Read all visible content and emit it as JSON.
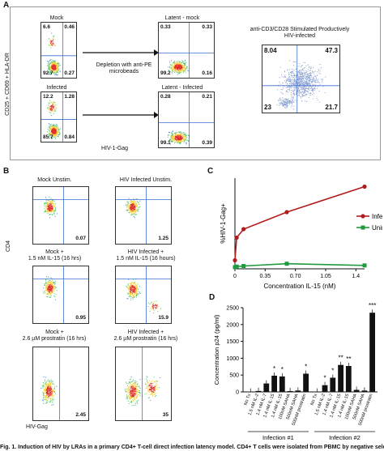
{
  "panelA": {
    "letter": "A",
    "ylabel": "CD25 + CD69 + HLA-DR",
    "xlabel": "HIV-1-Gag",
    "arrow_text": "Depletion with anti-PE microbeads",
    "stim_title": "anti-CD3/CD28 Stimulated Productively HIV-infected",
    "plots": [
      {
        "name": "mock",
        "label": "Mock",
        "q": [
          "6.6",
          "0.46",
          "92.7",
          "0.27"
        ]
      },
      {
        "name": "infected",
        "label": "Infected",
        "q": [
          "12.2",
          "1.28",
          "85.7",
          "0.84"
        ]
      },
      {
        "name": "latent-mock",
        "label": "Latent - mock",
        "q": [
          "0.33",
          "0.33",
          "99.2",
          "0.16"
        ]
      },
      {
        "name": "latent-infected",
        "label": "Latent - Infected",
        "q": [
          "0.28",
          "0.21",
          "99.1",
          "0.39"
        ]
      },
      {
        "name": "stimulated",
        "label": "",
        "q": [
          "8.04",
          "47.3",
          "23",
          "21.7"
        ]
      }
    ]
  },
  "panelB": {
    "letter": "B",
    "ylabel": "CD4",
    "xlabel": "HIV-Gag",
    "plots": [
      {
        "name": "mock-unstim",
        "label": "Mock Unstim.",
        "label2": "",
        "value": "0.07"
      },
      {
        "name": "hiv-unstim",
        "label": "HIV Infected Unstim.",
        "label2": "",
        "value": "1.25"
      },
      {
        "name": "mock-il15",
        "label": "Mock +",
        "label2": "1.5 nM IL-15 (16 hrs)",
        "value": "0.95"
      },
      {
        "name": "hiv-il15",
        "label": "HIV Infected +",
        "label2": "1.5 nM IL-15 (16 hours)",
        "value": "15.9"
      },
      {
        "name": "mock-prostratin",
        "label": "Mock +",
        "label2": "2.6 µM prostratin (16 hrs)",
        "value": "2.45"
      },
      {
        "name": "hiv-prostratin",
        "label": "HIV Infected +",
        "label2": "2.6 µM prostratin (16 hrs)",
        "value": "35"
      }
    ]
  },
  "chart_data": [
    {
      "type": "line",
      "panel": "C",
      "xlabel": "Concentration IL-15 (nM)",
      "ylabel": "%HIV-1-Gag+",
      "xlim": [
        0,
        1.5
      ],
      "ylim": [
        0,
        16
      ],
      "xticks": [
        "0",
        "0.35",
        "0.70",
        "1.05",
        "1.4"
      ],
      "tick_values": [
        0,
        0.35,
        0.7,
        1.05,
        1.4
      ],
      "legend": "right",
      "series": [
        {
          "name": "Infected",
          "color": "#b01c1c",
          "x": [
            0,
            0.02,
            0.1,
            0.6,
            1.5
          ],
          "y": [
            1.5,
            5.5,
            7,
            10,
            14.5
          ]
        },
        {
          "name": "Uninfected",
          "color": "#1f9a3e",
          "x": [
            0,
            0.02,
            0.1,
            0.6,
            1.5
          ],
          "y": [
            0.3,
            0.4,
            0.5,
            0.9,
            0.6
          ]
        }
      ]
    },
    {
      "type": "bar",
      "panel": "D",
      "ylabel": "Concentration p24 (pg/ml)",
      "ylim": [
        0,
        2500
      ],
      "yticks": [
        "0",
        "500",
        "1000",
        "1500",
        "2000",
        "2500"
      ],
      "tick_values": [
        0,
        500,
        1000,
        1500,
        2000,
        2500
      ],
      "groups": [
        {
          "label": "Infection #1",
          "categories": [
            "No Tx",
            "1.5 nM IL-2",
            "1.4 nM IL-7",
            "1.4 nM IL-15",
            "1.4 nM IL-15",
            "100nM SAHA",
            "500nM SAHA",
            "500nM prostratin"
          ],
          "values": [
            10,
            30,
            250,
            480,
            460,
            25,
            40,
            540
          ],
          "stars": [
            "",
            "",
            "",
            "*",
            "*",
            "",
            "",
            "*"
          ]
        },
        {
          "label": "Infection #2",
          "categories": [
            "No Tx",
            "1.5 nM IL-2",
            "1.4 nM IL-7",
            "1.4 nM IL-15",
            "1.4 nM IL-15",
            "100nM SAHA",
            "500nM SAHA",
            "500nM prostratin"
          ],
          "values": [
            10,
            200,
            420,
            800,
            770,
            60,
            40,
            2350
          ],
          "stars": [
            "",
            "*",
            "*",
            "**",
            "**",
            "",
            "",
            "***"
          ]
        }
      ]
    }
  ],
  "caption": "Fig. 1. Induction of HIV by LRAs in a primary CD4+ T-cell direct infection latency model. CD4+ T cells were isolated from PBMC by negative selection"
}
